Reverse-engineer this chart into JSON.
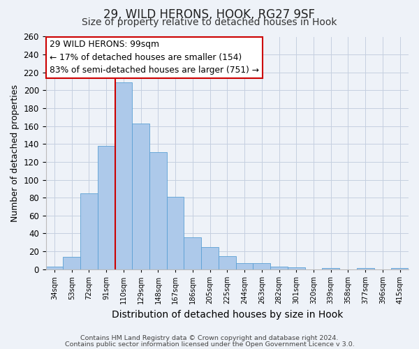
{
  "title": "29, WILD HERONS, HOOK, RG27 9SF",
  "subtitle": "Size of property relative to detached houses in Hook",
  "xlabel": "Distribution of detached houses by size in Hook",
  "ylabel": "Number of detached properties",
  "bar_values": [
    3,
    14,
    85,
    138,
    209,
    163,
    131,
    81,
    36,
    25,
    15,
    7,
    7,
    3,
    2,
    0,
    1,
    0,
    1,
    0,
    1
  ],
  "bar_labels": [
    "34sqm",
    "53sqm",
    "72sqm",
    "91sqm",
    "110sqm",
    "129sqm",
    "148sqm",
    "167sqm",
    "186sqm",
    "205sqm",
    "225sqm",
    "244sqm",
    "263sqm",
    "282sqm",
    "301sqm",
    "320sqm",
    "339sqm",
    "358sqm",
    "377sqm",
    "396sqm",
    "415sqm"
  ],
  "ylim": [
    0,
    260
  ],
  "yticks": [
    0,
    20,
    40,
    60,
    80,
    100,
    120,
    140,
    160,
    180,
    200,
    220,
    240,
    260
  ],
  "bar_color": "#adc9ea",
  "bar_edge_color": "#5a9fd4",
  "vline_x": 3.5,
  "vline_color": "#cc0000",
  "annotation_title": "29 WILD HERONS: 99sqm",
  "annotation_line1": "← 17% of detached houses are smaller (154)",
  "annotation_line2": "83% of semi-detached houses are larger (751) →",
  "annotation_box_color": "#ffffff",
  "annotation_box_edge": "#cc0000",
  "footer1": "Contains HM Land Registry data © Crown copyright and database right 2024.",
  "footer2": "Contains public sector information licensed under the Open Government Licence v 3.0.",
  "background_color": "#eef2f8",
  "grid_color": "#c5cfe0",
  "title_fontsize": 12,
  "subtitle_fontsize": 10
}
